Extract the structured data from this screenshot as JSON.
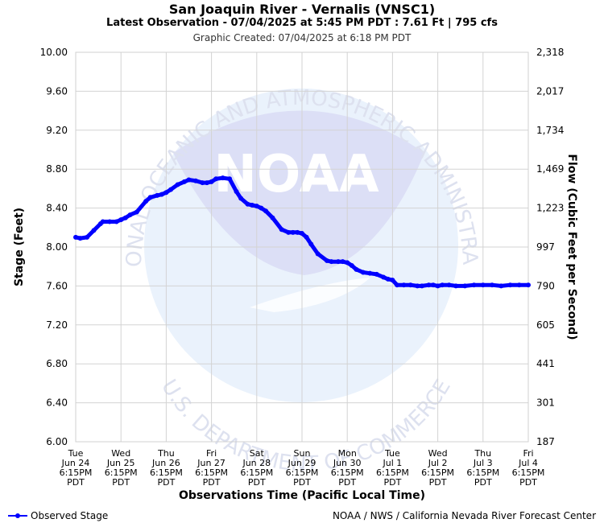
{
  "header": {
    "title": "San Joaquin River - Vernalis (VNSC1)",
    "subtitle": "Latest Observation - 07/04/2025 at 5:45 PM PDT : 7.61 Ft | 795 cfs",
    "created": "Graphic Created: 07/04/2025 at 6:18 PM PDT"
  },
  "footer": {
    "legend_label": "Observed Stage",
    "credit": "NOAA / NWS / California Nevada River Forecast Center"
  },
  "watermark": {
    "logo_text": "NOAA",
    "top_arc": "NATIONAL OCEANIC AND ATMOSPHERIC ADMINISTRATION",
    "bottom_arc": "U.S. DEPARTMENT OF COMMERCE"
  },
  "chart_data": {
    "type": "line",
    "xlabel": "Observations Time (Pacific Local Time)",
    "ylabel": "Stage (Feet)",
    "ylabel_right": "Flow (Cubic Feet per Second)",
    "ylim": [
      6.0,
      10.0
    ],
    "xlim": [
      0,
      10
    ],
    "grid": true,
    "y_ticks": [
      "6.00",
      "6.40",
      "6.80",
      "7.20",
      "7.60",
      "8.00",
      "8.40",
      "8.80",
      "9.20",
      "9.60",
      "10.00"
    ],
    "y2_ticks": [
      "187",
      "301",
      "441",
      "605",
      "790",
      "997",
      "1,223",
      "1,469",
      "1,734",
      "2,017",
      "2,318"
    ],
    "x_ticks": [
      {
        "day": "Tue",
        "date": "Jun 24",
        "time": "6:15PM",
        "tz": "PDT"
      },
      {
        "day": "Wed",
        "date": "Jun 25",
        "time": "6:15PM",
        "tz": "PDT"
      },
      {
        "day": "Thu",
        "date": "Jun 26",
        "time": "6:15PM",
        "tz": "PDT"
      },
      {
        "day": "Fri",
        "date": "Jun 27",
        "time": "6:15PM",
        "tz": "PDT"
      },
      {
        "day": "Sat",
        "date": "Jun 28",
        "time": "6:15PM",
        "tz": "PDT"
      },
      {
        "day": "Sun",
        "date": "Jun 29",
        "time": "6:15PM",
        "tz": "PDT"
      },
      {
        "day": "Mon",
        "date": "Jun 30",
        "time": "6:15PM",
        "tz": "PDT"
      },
      {
        "day": "Tue",
        "date": "Jul 1",
        "time": "6:15PM",
        "tz": "PDT"
      },
      {
        "day": "Wed",
        "date": "Jul 2",
        "time": "6:15PM",
        "tz": "PDT"
      },
      {
        "day": "Thu",
        "date": "Jul 3",
        "time": "6:15PM",
        "tz": "PDT"
      },
      {
        "day": "Fri",
        "date": "Jul 4",
        "time": "6:15PM",
        "tz": "PDT"
      }
    ],
    "series": [
      {
        "name": "Observed Stage",
        "color": "#0000ff",
        "x": [
          0,
          0.1,
          0.25,
          0.4,
          0.55,
          0.6,
          0.75,
          0.9,
          1.0,
          1.1,
          1.2,
          1.35,
          1.55,
          1.65,
          1.8,
          1.9,
          2.0,
          2.1,
          2.25,
          2.4,
          2.5,
          2.65,
          2.8,
          2.9,
          3.0,
          3.1,
          3.25,
          3.4,
          3.55,
          3.65,
          3.8,
          3.9,
          4.0,
          4.1,
          4.2,
          4.35,
          4.55,
          4.7,
          4.8,
          4.9,
          5.0,
          5.1,
          5.2,
          5.35,
          5.55,
          5.65,
          5.8,
          5.9,
          6.0,
          6.1,
          6.2,
          6.35,
          6.5,
          6.65,
          6.8,
          6.9,
          7.0,
          7.1,
          7.25,
          7.4,
          7.55,
          7.65,
          7.8,
          7.9,
          8.0,
          8.1,
          8.25,
          8.4,
          8.6,
          8.8,
          9.0,
          9.2,
          9.4,
          9.6,
          9.8,
          10.0
        ],
        "y": [
          8.1,
          8.09,
          8.1,
          8.17,
          8.24,
          8.26,
          8.26,
          8.26,
          8.28,
          8.3,
          8.33,
          8.36,
          8.47,
          8.51,
          8.53,
          8.54,
          8.56,
          8.59,
          8.64,
          8.67,
          8.69,
          8.68,
          8.66,
          8.66,
          8.67,
          8.7,
          8.71,
          8.7,
          8.57,
          8.5,
          8.44,
          8.43,
          8.42,
          8.4,
          8.37,
          8.3,
          8.18,
          8.15,
          8.15,
          8.15,
          8.14,
          8.1,
          8.03,
          7.93,
          7.86,
          7.85,
          7.85,
          7.85,
          7.84,
          7.81,
          7.77,
          7.74,
          7.73,
          7.72,
          7.69,
          7.67,
          7.66,
          7.61,
          7.61,
          7.61,
          7.6,
          7.6,
          7.61,
          7.61,
          7.6,
          7.61,
          7.61,
          7.6,
          7.6,
          7.61,
          7.61,
          7.61,
          7.6,
          7.61,
          7.61,
          7.61
        ]
      }
    ]
  }
}
